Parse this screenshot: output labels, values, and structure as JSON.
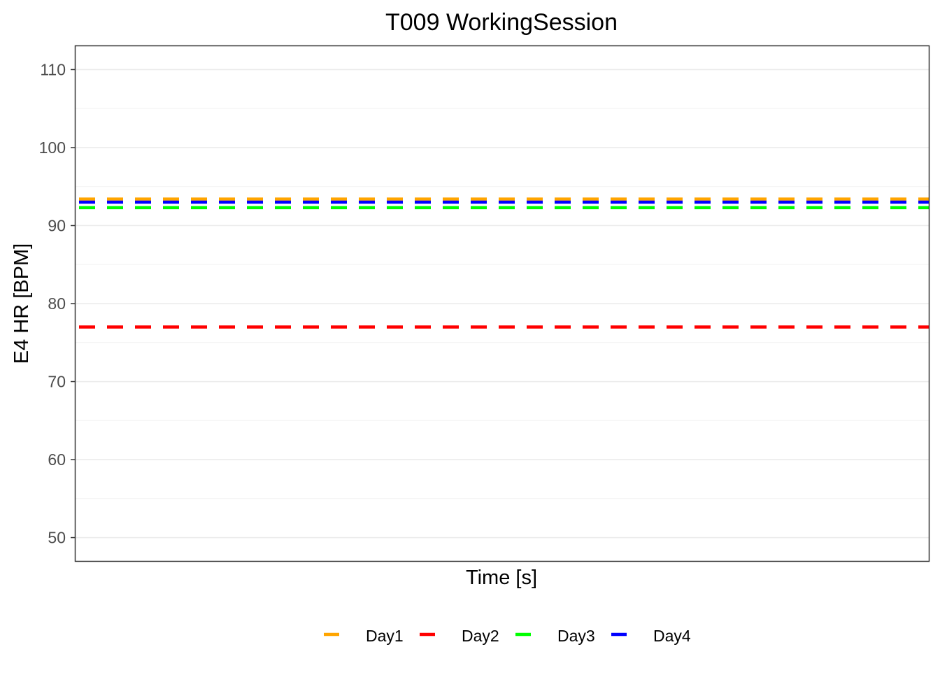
{
  "chart_data": {
    "type": "line",
    "title": "T009 WorkingSession",
    "xlabel": "Time [s]",
    "ylabel": "E4 HR [BPM]",
    "ylim": [
      47,
      113
    ],
    "yticks": [
      50,
      60,
      70,
      80,
      90,
      100,
      110
    ],
    "grid": true,
    "legend_position": "bottom",
    "line_style": "dashed",
    "series": [
      {
        "name": "Day1",
        "color": "#FFA500",
        "value": 93.4
      },
      {
        "name": "Day2",
        "color": "#FF0000",
        "value": 77.0
      },
      {
        "name": "Day3",
        "color": "#00FF00",
        "value": 92.3
      },
      {
        "name": "Day4",
        "color": "#0000FF",
        "value": 93.0
      }
    ]
  }
}
